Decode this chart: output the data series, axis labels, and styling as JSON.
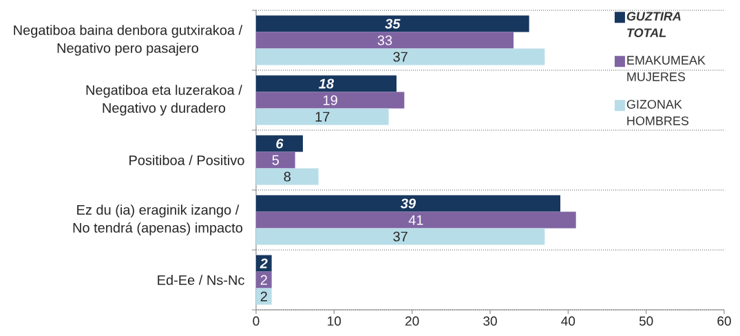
{
  "chart_data": {
    "type": "bar",
    "orientation": "horizontal",
    "categories": [
      "Negatiboa baina denbora gutxirakoa / Negativo pero pasajero",
      "Negatiboa eta luzerakoa / Negativo y duradero",
      "Positiboa / Positivo",
      "Ez du (ia) eraginik izango / No tendrá (apenas) impacto",
      "Ed-Ee / Ns-Nc"
    ],
    "series": [
      {
        "name": "GUZTIRA TOTAL",
        "color": "#17375e",
        "values": [
          35,
          18,
          6,
          39,
          2
        ]
      },
      {
        "name": "EMAKUMEAK MUJERES",
        "color": "#8064a2",
        "values": [
          33,
          19,
          5,
          41,
          2
        ]
      },
      {
        "name": "GIZONAK HOMBRES",
        "color": "#b7dde8",
        "values": [
          37,
          17,
          8,
          37,
          2
        ]
      }
    ],
    "xlim": [
      0,
      60
    ],
    "xticks": [
      0,
      10,
      20,
      30,
      40,
      50,
      60
    ],
    "grid": "y",
    "legend": "top right",
    "data_labels": true
  }
}
